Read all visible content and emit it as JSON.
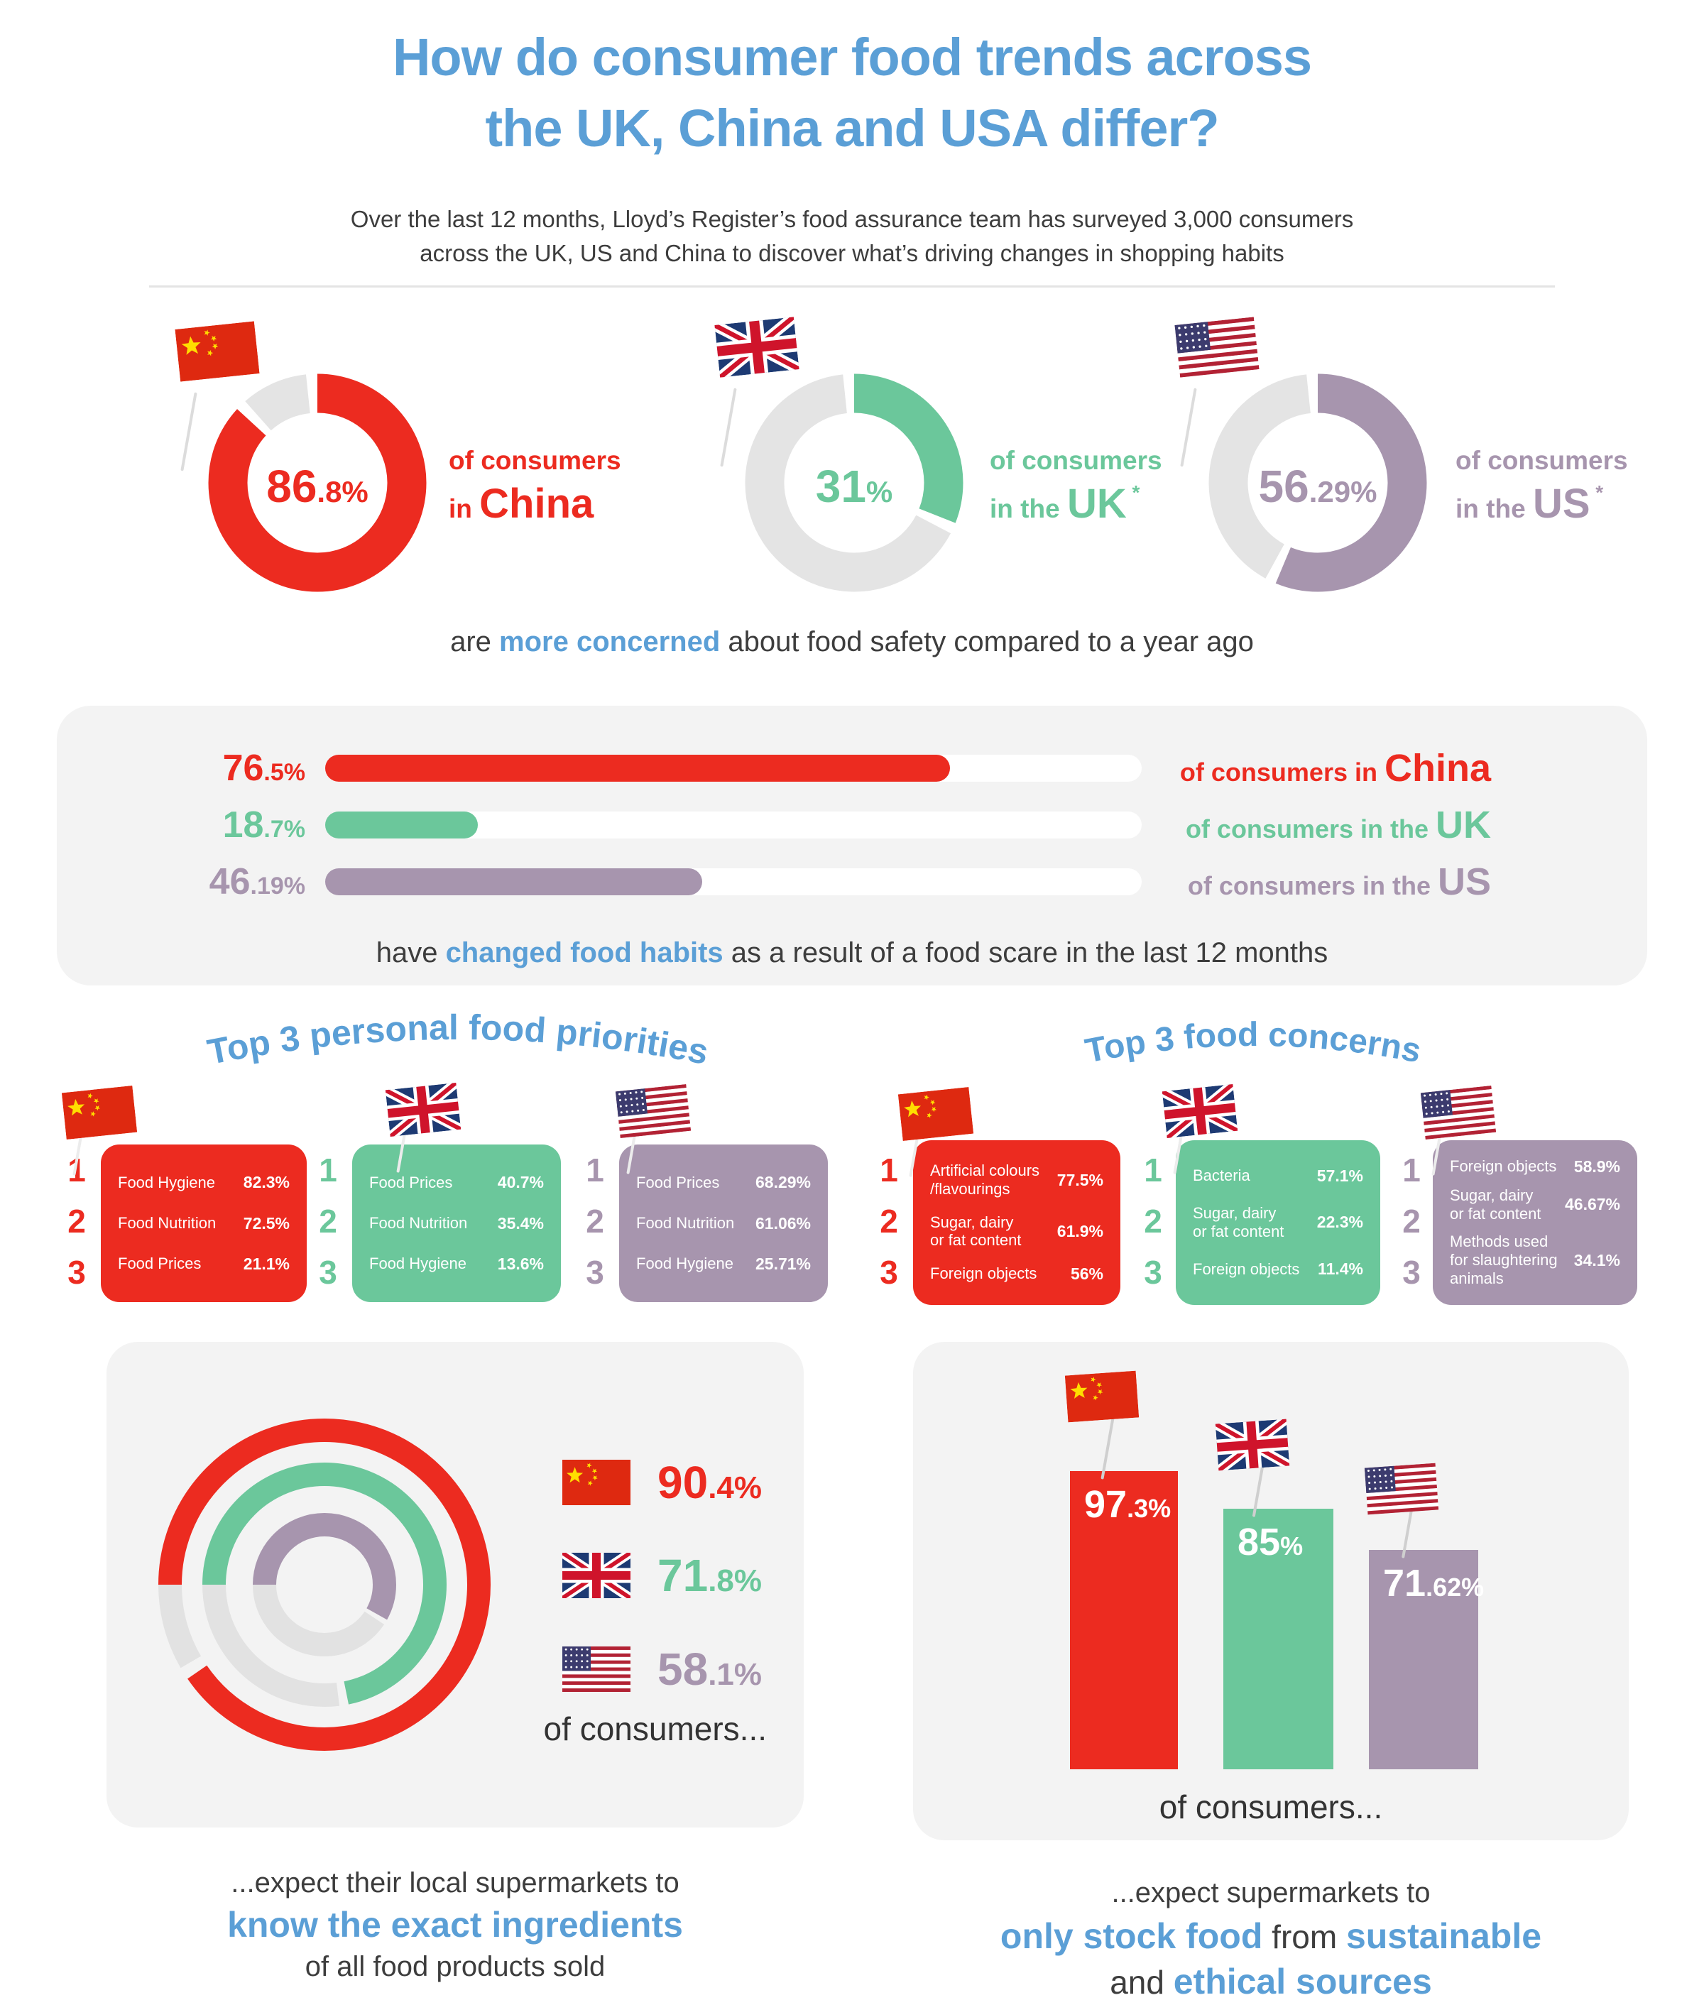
{
  "header": {
    "title_line1": "How do consumer food trends across",
    "title_line2": "the UK, China and USA differ?",
    "subtitle_line1": "Over the last 12 months, Lloyd’s Register’s food assurance team has surveyed 3,000 consumers",
    "subtitle_line2": "across the UK, US and China to discover what’s driving changes in shopping habits"
  },
  "colors": {
    "china": "#ec2b20",
    "uk": "#6bc79b",
    "us": "#a795ae",
    "blue": "#5b9fd6",
    "gray_ring": "#e4e4e4",
    "box": "#f3f3f3",
    "dark": "#3d3d3d"
  },
  "safety_donuts": {
    "caption": [
      {
        "t": "are ",
        "s": "d"
      },
      {
        "t": "more concerned",
        "s": "b"
      },
      {
        "t": " about food safety compared to a year ago",
        "s": "d"
      }
    ],
    "items": [
      {
        "id": "china",
        "flag": "cn",
        "pct": 86.8,
        "value_main": "86",
        "value_sub": ".8%",
        "line1": "of consumers",
        "line2_pre": "in ",
        "line2_big": "China",
        "asterisk": false
      },
      {
        "id": "uk",
        "flag": "uk",
        "pct": 31,
        "value_main": "31",
        "value_sub": "%",
        "line1": "of consumers",
        "line2_pre": "in the ",
        "line2_big": "UK",
        "asterisk": true
      },
      {
        "id": "us",
        "flag": "us",
        "pct": 56.29,
        "value_main": "56",
        "value_sub": ".29%",
        "line1": "of consumers",
        "line2_pre": "in the ",
        "line2_big": "US",
        "asterisk": true
      }
    ]
  },
  "habit_bars": {
    "caption": [
      {
        "t": "have ",
        "s": "d"
      },
      {
        "t": "changed food habits",
        "s": "b"
      },
      {
        "t": " as a result of a food scare in the last 12 months",
        "s": "d"
      }
    ],
    "items": [
      {
        "id": "china",
        "pct": 76.5,
        "value_main": "76",
        "value_sub": ".5%",
        "label_small": "of consumers in ",
        "label_big": "China"
      },
      {
        "id": "uk",
        "pct": 18.7,
        "value_main": "18",
        "value_sub": ".7%",
        "label_small": "of consumers in the ",
        "label_big": "UK"
      },
      {
        "id": "us",
        "pct": 46.19,
        "value_main": "46",
        "value_sub": ".19%",
        "label_small": "of consumers in the ",
        "label_big": "US"
      }
    ]
  },
  "priorities": {
    "heading": "Top 3 personal food priorities",
    "cards": [
      {
        "id": "china",
        "flag": "cn",
        "rows": [
          {
            "rank": "1",
            "label": [
              "Food Hygiene"
            ],
            "value": "82.3%"
          },
          {
            "rank": "2",
            "label": [
              "Food Nutrition"
            ],
            "value": "72.5%"
          },
          {
            "rank": "3",
            "label": [
              "Food Prices"
            ],
            "value": "21.1%"
          }
        ]
      },
      {
        "id": "uk",
        "flag": "uk",
        "rows": [
          {
            "rank": "1",
            "label": [
              "Food Prices"
            ],
            "value": "40.7%"
          },
          {
            "rank": "2",
            "label": [
              "Food Nutrition"
            ],
            "value": "35.4%"
          },
          {
            "rank": "3",
            "label": [
              "Food Hygiene"
            ],
            "value": "13.6%"
          }
        ]
      },
      {
        "id": "us",
        "flag": "us",
        "rows": [
          {
            "rank": "1",
            "label": [
              "Food Prices"
            ],
            "value": "68.29%"
          },
          {
            "rank": "2",
            "label": [
              "Food Nutrition"
            ],
            "value": "61.06%"
          },
          {
            "rank": "3",
            "label": [
              "Food Hygiene"
            ],
            "value": "25.71%"
          }
        ]
      }
    ]
  },
  "concerns": {
    "heading": "Top 3 food concerns",
    "cards": [
      {
        "id": "china",
        "flag": "cn",
        "rows": [
          {
            "rank": "1",
            "label": [
              "Artificial colours",
              "/flavourings"
            ],
            "value": "77.5%"
          },
          {
            "rank": "2",
            "label": [
              "Sugar, dairy",
              "or fat content"
            ],
            "value": "61.9%"
          },
          {
            "rank": "3",
            "label": [
              "Foreign objects"
            ],
            "value": "56%"
          }
        ]
      },
      {
        "id": "uk",
        "flag": "uk",
        "rows": [
          {
            "rank": "1",
            "label": [
              "Bacteria"
            ],
            "value": "57.1%"
          },
          {
            "rank": "2",
            "label": [
              "Sugar, dairy",
              "or fat content"
            ],
            "value": "22.3%"
          },
          {
            "rank": "3",
            "label": [
              "Foreign objects"
            ],
            "value": "11.4%"
          }
        ]
      },
      {
        "id": "us",
        "flag": "us",
        "rows": [
          {
            "rank": "1",
            "label": [
              "Foreign objects"
            ],
            "value": "58.9%"
          },
          {
            "rank": "2",
            "label": [
              "Sugar, dairy",
              "or fat content"
            ],
            "value": "46.67%"
          },
          {
            "rank": "3",
            "label": [
              "Methods used",
              "for slaughtering",
              "animals"
            ],
            "value": "34.1%"
          }
        ]
      }
    ]
  },
  "ingredients_panel": {
    "rings": [
      {
        "id": "china",
        "pct": 90.4
      },
      {
        "id": "uk",
        "pct": 71.8
      },
      {
        "id": "us",
        "pct": 58.1
      }
    ],
    "legend": [
      {
        "id": "china",
        "flag": "cn",
        "value_main": "90",
        "value_sub": ".4%"
      },
      {
        "id": "uk",
        "flag": "uk",
        "value_main": "71",
        "value_sub": ".8%"
      },
      {
        "id": "us",
        "flag": "us",
        "value_main": "58",
        "value_sub": ".1%"
      }
    ],
    "note": "of consumers...",
    "caption": [
      [
        {
          "t": "...expect their local supermarkets to",
          "s": "dc"
        }
      ],
      [
        {
          "t": "know the exact ingredients",
          "s": "bb"
        }
      ],
      [
        {
          "t": "of all food products sold",
          "s": "dc"
        }
      ]
    ]
  },
  "sustainable_panel": {
    "bars": [
      {
        "id": "china",
        "flag": "cn",
        "pct": 97.3,
        "value_main": "97",
        "value_sub": ".3%"
      },
      {
        "id": "uk",
        "flag": "uk",
        "pct": 85,
        "value_main": "85",
        "value_sub": "%"
      },
      {
        "id": "us",
        "flag": "us",
        "pct": 71.62,
        "value_main": "71",
        "value_sub": ".62%"
      }
    ],
    "note": "of consumers...",
    "caption": [
      [
        {
          "t": "...expect supermarkets to",
          "s": "dc"
        }
      ],
      [
        {
          "t": "only stock food",
          "s": "bb"
        },
        {
          "t": " from ",
          "s": "dm"
        },
        {
          "t": "sustainable",
          "s": "bb"
        }
      ],
      [
        {
          "t": "and ",
          "s": "dm"
        },
        {
          "t": "ethical sources",
          "s": "bb"
        }
      ]
    ]
  },
  "chart_data": [
    {
      "type": "pie",
      "title": "are more concerned about food safety compared to a year ago",
      "unit": "%",
      "categories": [
        "China",
        "UK",
        "US"
      ],
      "values": [
        86.8,
        31,
        56.29
      ]
    },
    {
      "type": "bar",
      "orientation": "horizontal",
      "title": "have changed food habits as a result of a food scare in the last 12 months",
      "unit": "%",
      "categories": [
        "China",
        "UK",
        "US"
      ],
      "values": [
        76.5,
        18.7,
        46.19
      ],
      "xlim": [
        0,
        100
      ]
    },
    {
      "type": "table",
      "title": "Top 3 personal food priorities",
      "columns": [
        "Rank",
        "China item",
        "China %",
        "UK item",
        "UK %",
        "US item",
        "US %"
      ],
      "rows": [
        [
          "1",
          "Food Hygiene",
          82.3,
          "Food Prices",
          40.7,
          "Food Prices",
          68.29
        ],
        [
          "2",
          "Food Nutrition",
          72.5,
          "Food Nutrition",
          35.4,
          "Food Nutrition",
          61.06
        ],
        [
          "3",
          "Food Prices",
          21.1,
          "Food Hygiene",
          13.6,
          "Food Hygiene",
          25.71
        ]
      ]
    },
    {
      "type": "table",
      "title": "Top 3 food concerns",
      "columns": [
        "Rank",
        "China item",
        "China %",
        "UK item",
        "UK %",
        "US item",
        "US %"
      ],
      "rows": [
        [
          "1",
          "Artificial colours/flavourings",
          77.5,
          "Bacteria",
          57.1,
          "Foreign objects",
          58.9
        ],
        [
          "2",
          "Sugar, dairy or fat content",
          61.9,
          "Sugar, dairy or fat content",
          22.3,
          "Sugar, dairy or fat content",
          46.67
        ],
        [
          "3",
          "Foreign objects",
          56,
          "Foreign objects",
          11.4,
          "Methods used for slaughtering animals",
          34.1
        ]
      ]
    },
    {
      "type": "pie",
      "title": "expect their local supermarkets to know the exact ingredients of all food products sold",
      "unit": "%",
      "categories": [
        "China",
        "UK",
        "US"
      ],
      "values": [
        90.4,
        71.8,
        58.1
      ]
    },
    {
      "type": "bar",
      "orientation": "vertical",
      "title": "expect supermarkets to only stock food from sustainable and ethical sources",
      "unit": "%",
      "categories": [
        "China",
        "UK",
        "US"
      ],
      "values": [
        97.3,
        85,
        71.62
      ],
      "ylim": [
        0,
        100
      ]
    }
  ]
}
